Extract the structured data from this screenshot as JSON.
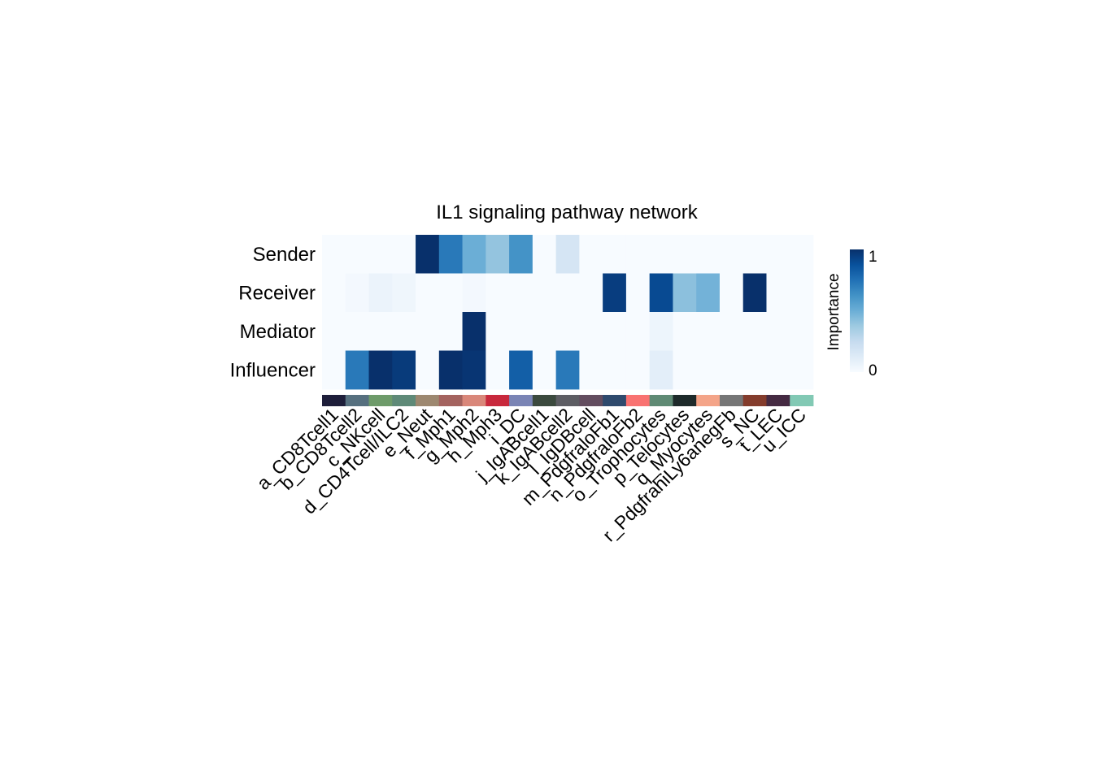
{
  "chart_data": {
    "type": "heatmap",
    "title": "IL1 signaling pathway network",
    "rows": [
      "Sender",
      "Receiver",
      "Mediator",
      "Influencer"
    ],
    "columns": [
      "a_CD8Tcell1",
      "b_CD8Tcell2",
      "c_NKcell",
      "d_CD4Tcell/ILC2",
      "e_Neut",
      "f_Mph1",
      "g_Mph2",
      "h_Mph3",
      "i_DC",
      "j_IgABcell1",
      "k_IgABcell2",
      "l_IgDBcell",
      "m_PdgfraloFb1",
      "n_PdgfraloFb2",
      "o_Trophocytes",
      "p_Telocytes",
      "q_Myocytes",
      "r_PdgfrahiLy6anegFb",
      "s_NC",
      "t_LEC",
      "u_ICC"
    ],
    "column_colors": [
      "#1e1e3a",
      "#56707f",
      "#6e9b6a",
      "#5f8a78",
      "#9d8870",
      "#a4635f",
      "#d9877a",
      "#c8283c",
      "#7a84b5",
      "#3c4a3e",
      "#5d5d63",
      "#634d5f",
      "#2f4a6d",
      "#f97271",
      "#5f8a74",
      "#1e2a2a",
      "#f4a488",
      "#767676",
      "#843c2c",
      "#452a42",
      "#82c9b4"
    ],
    "values": [
      [
        0,
        0,
        0,
        0,
        1.0,
        0.72,
        0.5,
        0.4,
        0.62,
        0,
        0.17,
        0,
        0,
        0,
        0,
        0,
        0,
        0,
        0,
        0,
        0
      ],
      [
        0,
        0.02,
        0.06,
        0.04,
        0,
        0,
        0.02,
        0,
        0,
        0,
        0,
        0,
        0.95,
        0,
        0.9,
        0.42,
        0.48,
        0,
        1.0,
        0,
        0
      ],
      [
        0,
        0,
        0,
        0,
        0,
        0,
        1.0,
        0,
        0,
        0,
        0,
        0,
        0,
        0,
        0.05,
        0,
        0,
        0,
        0,
        0,
        0
      ],
      [
        0,
        0.72,
        1.0,
        0.96,
        0,
        1.0,
        0.98,
        0,
        0.82,
        0,
        0.72,
        0,
        0,
        0,
        0.1,
        0,
        0,
        0,
        0,
        0,
        0
      ]
    ],
    "colorbar": {
      "label": "Importance",
      "min_label": "0",
      "max_label": "1",
      "min": 0,
      "max": 1
    },
    "colorscale": [
      "#f7fbff",
      "#deebf7",
      "#c6dbef",
      "#9ecae1",
      "#6baed6",
      "#4292c6",
      "#2171b5",
      "#08519c",
      "#08306b"
    ]
  }
}
